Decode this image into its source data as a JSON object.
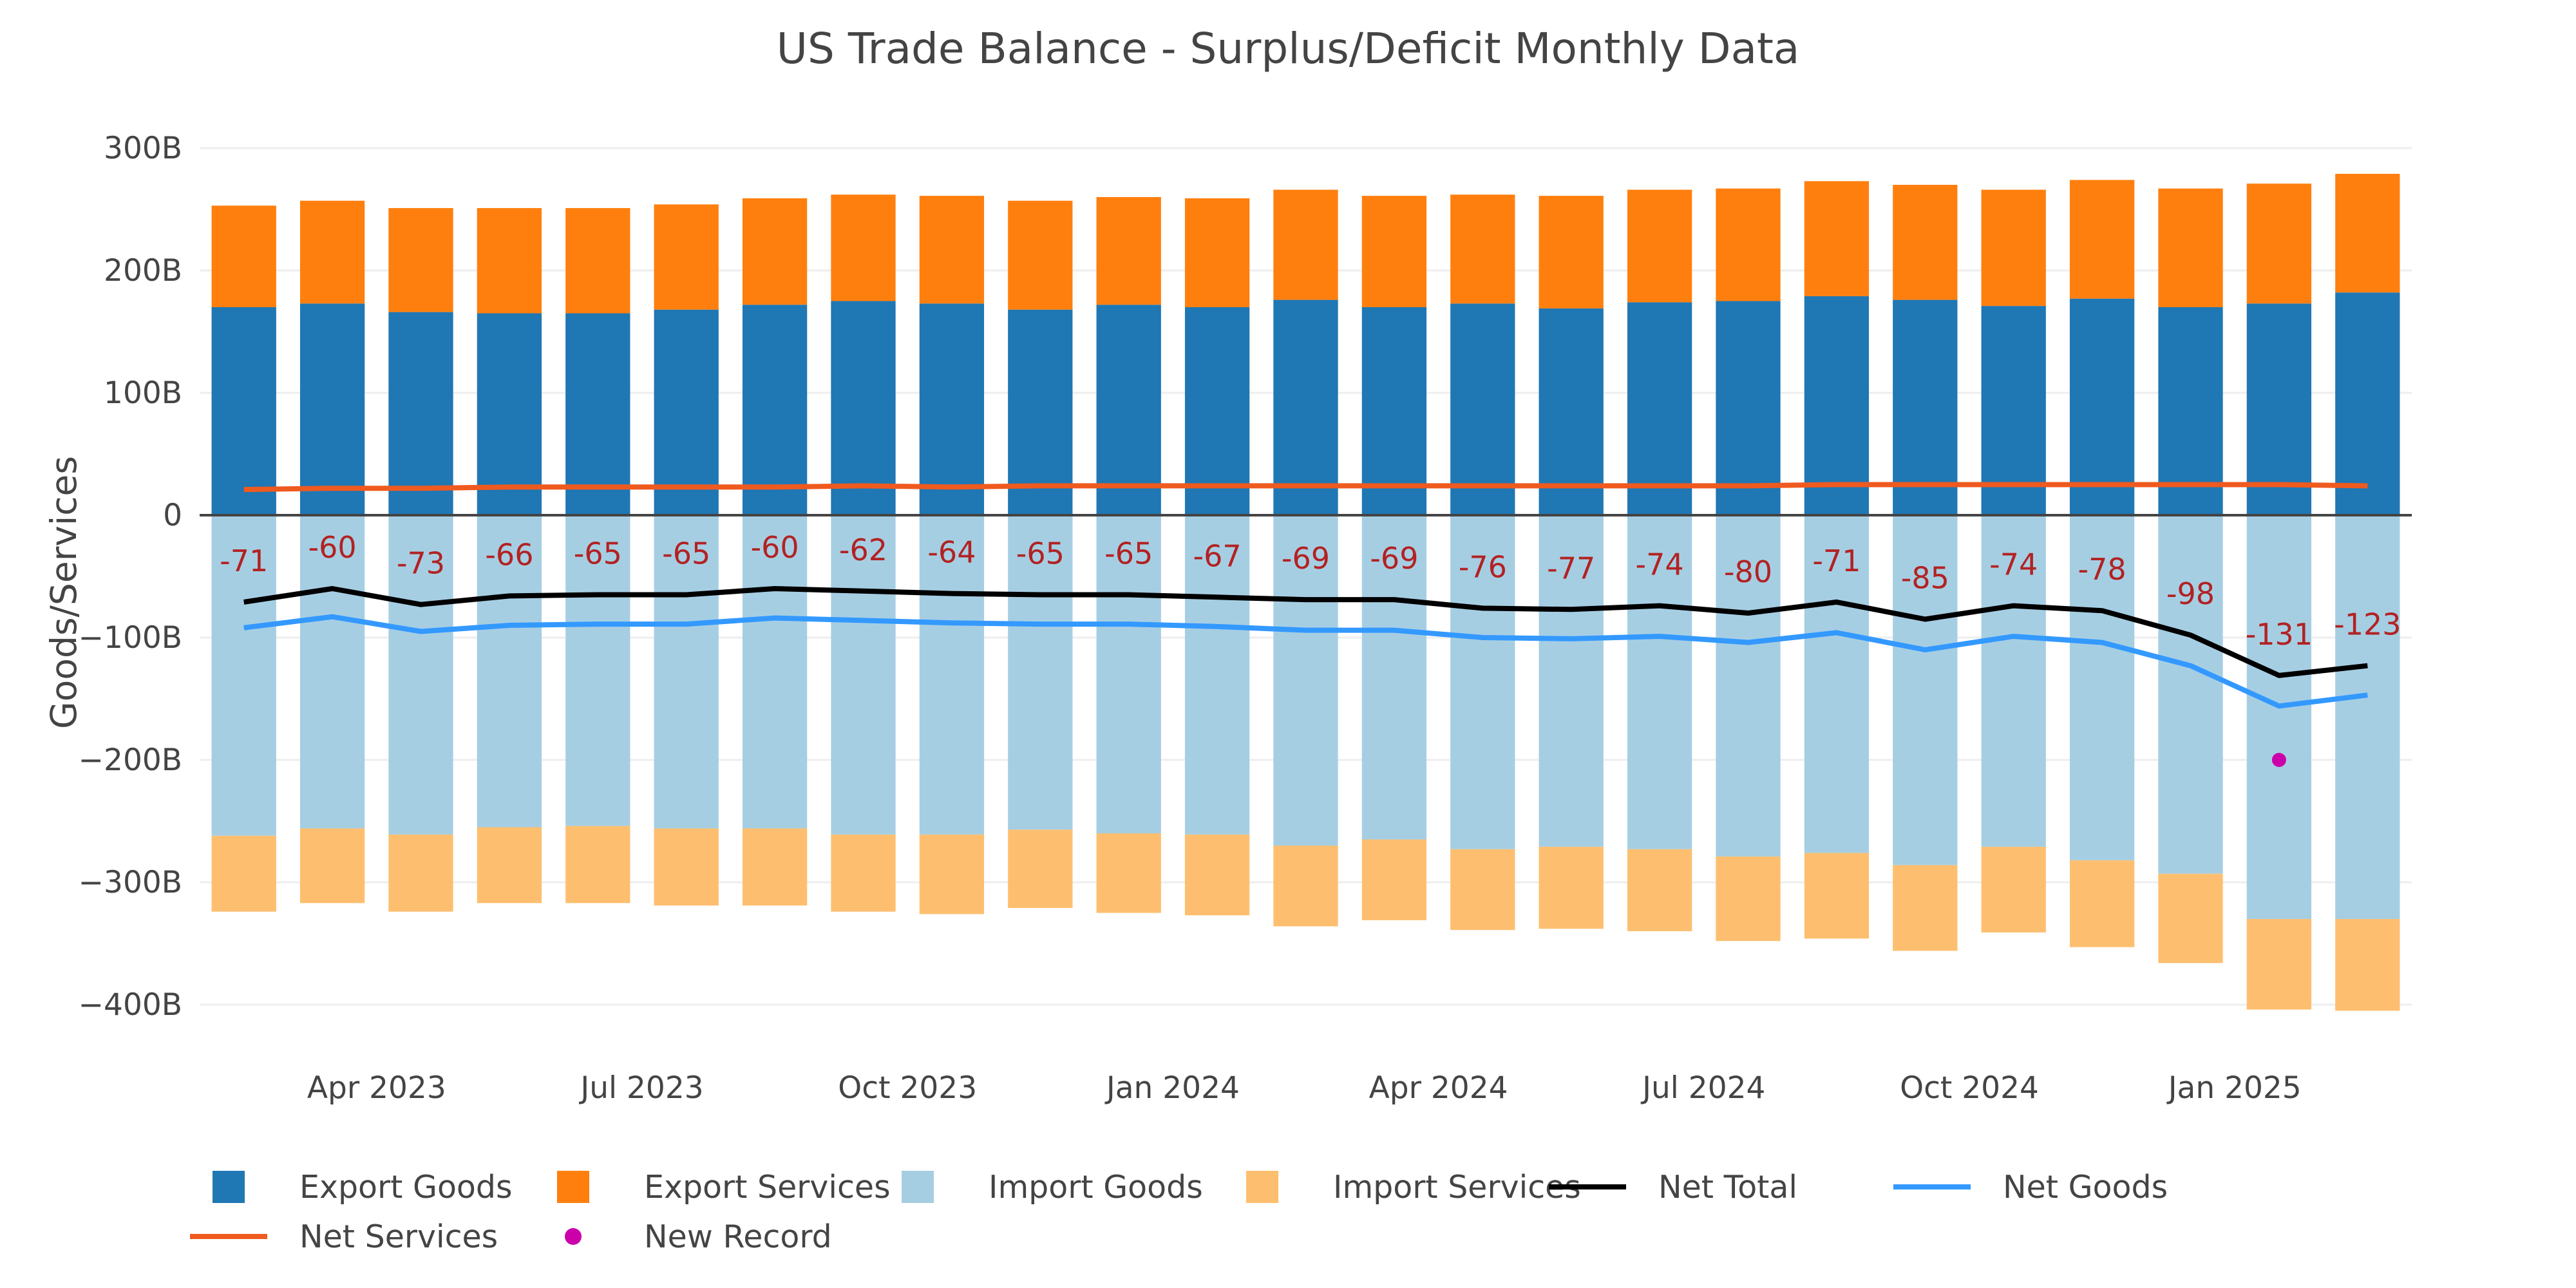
{
  "chart_data": {
    "type": "bar",
    "title": "US Trade Balance - Surplus/Deficit Monthly Data",
    "ylabel": "Goods/Services",
    "xlabel": "",
    "ylim": [
      -400,
      300
    ],
    "y_ticks": [
      300,
      200,
      100,
      0,
      -100,
      -200,
      -300,
      -400
    ],
    "y_tick_labels": [
      "300B",
      "200B",
      "100B",
      "0",
      "−100B",
      "−200B",
      "−300B",
      "−400B"
    ],
    "months": [
      "Feb 2023",
      "Mar 2023",
      "Apr 2023",
      "May 2023",
      "Jun 2023",
      "Jul 2023",
      "Aug 2023",
      "Sep 2023",
      "Oct 2023",
      "Nov 2023",
      "Dec 2023",
      "Jan 2024",
      "Feb 2024",
      "Mar 2024",
      "Apr 2024",
      "May 2024",
      "Jun 2024",
      "Jul 2024",
      "Aug 2024",
      "Sep 2024",
      "Oct 2024",
      "Nov 2024",
      "Dec 2024",
      "Jan 2025",
      "Feb 2025"
    ],
    "x_tick_labels": [
      {
        "label": "Apr 2023",
        "index": 2
      },
      {
        "label": "Jul 2023",
        "index": 5
      },
      {
        "label": "Oct 2023",
        "index": 8
      },
      {
        "label": "Jan 2024",
        "index": 11
      },
      {
        "label": "Apr 2024",
        "index": 14
      },
      {
        "label": "Jul 2024",
        "index": 17
      },
      {
        "label": "Oct 2024",
        "index": 20
      },
      {
        "label": "Jan 2025",
        "index": 23
      }
    ],
    "barmode": "relative",
    "series": [
      {
        "name": "Export Goods",
        "kind": "bar",
        "color": "#1f77b4",
        "values": [
          170,
          173,
          166,
          165,
          165,
          168,
          172,
          175,
          173,
          168,
          172,
          170,
          176,
          170,
          173,
          169,
          174,
          175,
          179,
          176,
          171,
          177,
          170,
          173,
          182
        ]
      },
      {
        "name": "Export Services",
        "kind": "bar",
        "color": "#ff7f0e",
        "values": [
          83,
          84,
          85,
          86,
          86,
          86,
          87,
          87,
          88,
          89,
          88,
          89,
          90,
          91,
          89,
          92,
          92,
          92,
          94,
          94,
          95,
          97,
          97,
          98,
          97
        ]
      },
      {
        "name": "Import Goods",
        "kind": "bar",
        "color": "#a6cee3",
        "values": [
          -262,
          -256,
          -261,
          -255,
          -254,
          -256,
          -256,
          -261,
          -261,
          -257,
          -260,
          -261,
          -270,
          -265,
          -273,
          -271,
          -273,
          -279,
          -276,
          -286,
          -271,
          -282,
          -293,
          -330,
          -330
        ]
      },
      {
        "name": "Import Services",
        "kind": "bar",
        "color": "#fdbf6f",
        "values": [
          -62,
          -61,
          -63,
          -62,
          -63,
          -63,
          -63,
          -63,
          -65,
          -64,
          -65,
          -66,
          -66,
          -66,
          -66,
          -67,
          -67,
          -69,
          -70,
          -70,
          -70,
          -71,
          -73,
          -74,
          -75
        ]
      },
      {
        "name": "Net Total",
        "kind": "line",
        "color": "#000000",
        "values": [
          -71,
          -60,
          -73,
          -66,
          -65,
          -65,
          -60,
          -62,
          -64,
          -65,
          -65,
          -67,
          -69,
          -69,
          -76,
          -77,
          -74,
          -80,
          -71,
          -85,
          -74,
          -78,
          -98,
          -131,
          -123
        ]
      },
      {
        "name": "Net Goods",
        "kind": "line",
        "color": "#3399ff",
        "values": [
          -92,
          -83,
          -95,
          -90,
          -89,
          -89,
          -84,
          -86,
          -88,
          -89,
          -89,
          -91,
          -94,
          -94,
          -100,
          -101,
          -99,
          -104,
          -96,
          -110,
          -99,
          -104,
          -123,
          -156,
          -147
        ]
      },
      {
        "name": "Net Services",
        "kind": "line",
        "color": "#ef5a1f",
        "values": [
          21,
          22,
          22,
          23,
          23,
          23,
          23,
          24,
          23,
          24,
          24,
          24,
          24,
          24,
          24,
          24,
          24,
          24,
          25,
          25,
          25,
          25,
          25,
          25,
          24
        ]
      },
      {
        "name": "New Record",
        "kind": "marker",
        "color": "#cc00aa",
        "points": [
          {
            "index": 23,
            "value": -200
          }
        ]
      }
    ],
    "data_labels": [
      "-71",
      "-60",
      "-73",
      "-66",
      "-65",
      "-65",
      "-60",
      "-62",
      "-64",
      "-65",
      "-65",
      "-67",
      "-69",
      "-69",
      "-76",
      "-77",
      "-74",
      "-80",
      "-71",
      "-85",
      "-74",
      "-78",
      "-98",
      "-131",
      "-123"
    ],
    "legend": {
      "placement": "bottom",
      "items": [
        {
          "name": "Export Goods",
          "symbol": "square",
          "color": "#1f77b4"
        },
        {
          "name": "Export Services",
          "symbol": "square",
          "color": "#ff7f0e"
        },
        {
          "name": "Import Goods",
          "symbol": "square",
          "color": "#a6cee3"
        },
        {
          "name": "Import Services",
          "symbol": "square",
          "color": "#fdbf6f"
        },
        {
          "name": "Net Total",
          "symbol": "line",
          "color": "#000000"
        },
        {
          "name": "Net Goods",
          "symbol": "line",
          "color": "#3399ff"
        },
        {
          "name": "Net Services",
          "symbol": "line",
          "color": "#ef5a1f"
        },
        {
          "name": "New Record",
          "symbol": "dot",
          "color": "#cc00aa"
        }
      ]
    },
    "grid": true
  }
}
